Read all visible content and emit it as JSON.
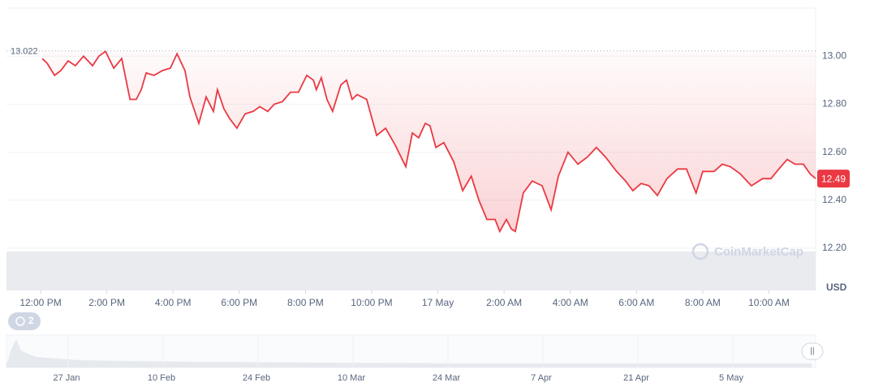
{
  "chart_data": {
    "type": "line",
    "color": "#ea3943",
    "x": [
      0.05,
      0.2,
      0.42,
      0.61,
      0.83,
      1.05,
      1.3,
      1.57,
      1.76,
      1.96,
      2.21,
      2.45,
      2.7,
      2.89,
      3.04,
      3.19,
      3.43,
      3.68,
      3.92,
      4.12,
      4.36,
      4.51,
      4.78,
      5.0,
      5.22,
      5.34,
      5.54,
      5.71,
      5.93,
      6.18,
      6.42,
      6.62,
      6.86,
      7.06,
      7.3,
      7.55,
      7.79,
      8.04,
      8.24,
      8.33,
      8.48,
      8.65,
      8.82,
      9.07,
      9.24,
      9.41,
      9.56,
      9.85,
      10.15,
      10.42,
      10.71,
      11.03,
      11.23,
      11.42,
      11.62,
      11.76,
      11.94,
      12.18,
      12.48,
      12.75,
      13.01,
      13.24,
      13.48,
      13.73,
      13.87,
      14.07,
      14.22,
      14.34,
      14.58,
      14.85,
      15.15,
      15.42,
      15.64,
      15.93,
      16.23,
      16.52,
      16.79,
      17.06,
      17.4,
      17.67,
      17.89,
      18.14,
      18.38,
      18.63,
      18.92,
      19.24,
      19.51,
      19.8,
      20.0,
      20.34,
      20.59,
      20.83,
      21.13,
      21.47,
      21.81,
      22.06,
      22.3,
      22.55,
      22.79,
      23.04,
      23.24,
      23.41
    ],
    "values": [
      12.99,
      12.97,
      12.92,
      12.94,
      12.98,
      12.96,
      13.0,
      12.96,
      13.0,
      13.02,
      12.95,
      12.99,
      12.82,
      12.82,
      12.86,
      12.93,
      12.92,
      12.94,
      12.95,
      13.01,
      12.94,
      12.83,
      12.72,
      12.83,
      12.77,
      12.86,
      12.78,
      12.74,
      12.7,
      12.76,
      12.77,
      12.79,
      12.77,
      12.8,
      12.81,
      12.85,
      12.85,
      12.92,
      12.9,
      12.86,
      12.91,
      12.82,
      12.77,
      12.88,
      12.9,
      12.82,
      12.84,
      12.82,
      12.67,
      12.7,
      12.63,
      12.54,
      12.68,
      12.66,
      12.72,
      12.71,
      12.62,
      12.64,
      12.56,
      12.44,
      12.5,
      12.4,
      12.32,
      12.32,
      12.27,
      12.32,
      12.28,
      12.27,
      12.43,
      12.48,
      12.46,
      12.36,
      12.5,
      12.6,
      12.55,
      12.58,
      12.62,
      12.58,
      12.52,
      12.48,
      12.44,
      12.47,
      12.46,
      12.42,
      12.49,
      12.53,
      12.53,
      12.43,
      12.52,
      12.52,
      12.55,
      12.54,
      12.51,
      12.46,
      12.49,
      12.49,
      12.53,
      12.57,
      12.55,
      12.55,
      12.51,
      12.49
    ],
    "xlim": [
      -1.03,
      23.41
    ],
    "xticks": [
      {
        "value": 0,
        "label": "12:00 PM"
      },
      {
        "value": 2,
        "label": "2:00 PM"
      },
      {
        "value": 4,
        "label": "4:00 PM"
      },
      {
        "value": 6,
        "label": "6:00 PM"
      },
      {
        "value": 8,
        "label": "8:00 PM"
      },
      {
        "value": 10,
        "label": "10:00 PM"
      },
      {
        "value": 12,
        "label": "17 May"
      },
      {
        "value": 14,
        "label": "2:00 AM"
      },
      {
        "value": 16,
        "label": "4:00 AM"
      },
      {
        "value": 18,
        "label": "6:00 AM"
      },
      {
        "value": 20,
        "label": "8:00 AM"
      },
      {
        "value": 22,
        "label": "10:00 AM"
      }
    ],
    "ylim": [
      12.2,
      13.2
    ],
    "yticks": [
      {
        "value": 12.2,
        "label": "12.20"
      },
      {
        "value": 12.4,
        "label": "12.40"
      },
      {
        "value": 12.6,
        "label": "12.60"
      },
      {
        "value": 12.8,
        "label": "12.80"
      },
      {
        "value": 13.0,
        "label": "13.00"
      }
    ],
    "grid": true,
    "reference_value": 13.022,
    "last_price": 12.49,
    "y_unit": "USD",
    "watermark": "CoinMarketCap",
    "navigator": {
      "badge": 2,
      "labels": [
        "27 Jan",
        "10 Feb",
        "24 Feb",
        "10 Mar",
        "24 Mar",
        "7 Apr",
        "21 Apr",
        "5 May"
      ]
    }
  }
}
